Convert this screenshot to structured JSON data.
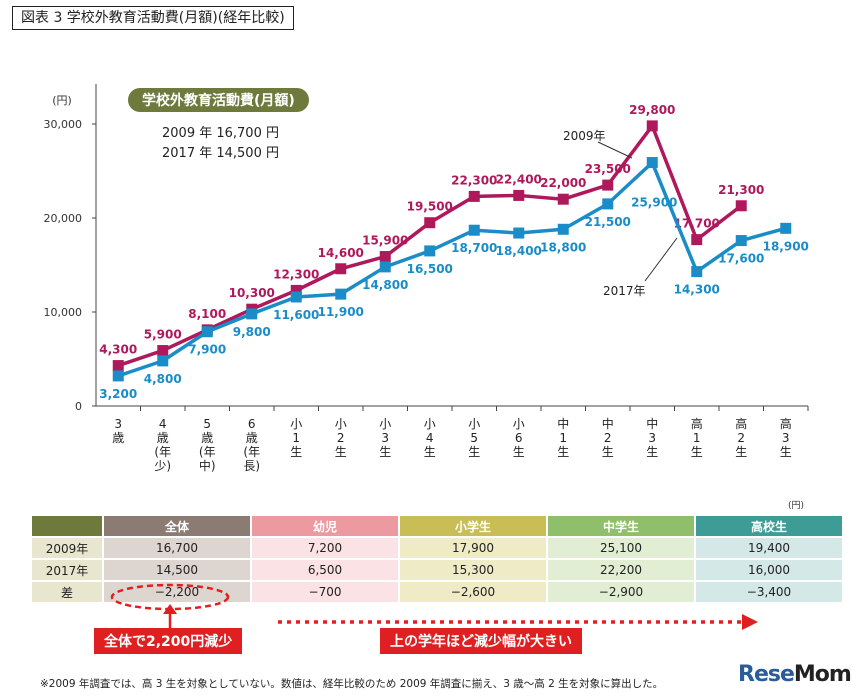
{
  "figure_title": "図表 3 学校外教育活動費(月額)(経年比較)",
  "summary": {
    "title": "学校外教育活動費(月額)",
    "line1": "2009 年 16,700 円",
    "line2": "2017 年 14,500 円"
  },
  "colors": {
    "y2009": "#b0185c",
    "y2017": "#1a8cc8",
    "highlight": "#e02020"
  },
  "chart_data": {
    "type": "line",
    "ylabel": "(円)",
    "ylim": [
      0,
      30000
    ],
    "yticks": [
      "0",
      "10,000",
      "20,000",
      "30,000"
    ],
    "categories": [
      "3歳",
      "4歳(年少)",
      "5歳(年中)",
      "6歳(年長)",
      "小1生",
      "小2生",
      "小3生",
      "小4生",
      "小5生",
      "小6生",
      "中1生",
      "中2生",
      "中3生",
      "高1生",
      "高2生",
      "高3生"
    ],
    "category_labels": [
      "3\n歳",
      "4\n歳\n(年\n少)",
      "5\n歳\n(年\n中)",
      "6\n歳\n(年\n長)",
      "小\n1\n生",
      "小\n2\n生",
      "小\n3\n生",
      "小\n4\n生",
      "小\n5\n生",
      "小\n6\n生",
      "中\n1\n生",
      "中\n2\n生",
      "中\n3\n生",
      "高\n1\n生",
      "高\n2\n生",
      "高\n3\n生"
    ],
    "series": [
      {
        "name": "2009年",
        "values": [
          4300,
          5900,
          8100,
          10300,
          12300,
          14600,
          15900,
          19500,
          22300,
          22400,
          22000,
          23500,
          29800,
          17700,
          21300,
          null
        ],
        "labels": [
          "4,300",
          "5,900",
          "8,100",
          "10,300",
          "12,300",
          "14,600",
          "15,900",
          "19,500",
          "22,300",
          "22,400",
          "22,000",
          "23,500",
          "29,800",
          "17,700",
          "21,300",
          ""
        ]
      },
      {
        "name": "2017年",
        "values": [
          3200,
          4800,
          7900,
          9800,
          11600,
          11900,
          14800,
          16500,
          18700,
          18400,
          18800,
          21500,
          25900,
          14300,
          17600,
          18900
        ],
        "labels": [
          "3,200",
          "4,800",
          "7,900",
          "9,800",
          "11,600",
          "11,900",
          "14,800",
          "16,500",
          "18,700",
          "18,400",
          "18,800",
          "21,500",
          "25,900",
          "14,300",
          "17,600",
          "18,900"
        ]
      }
    ]
  },
  "table": {
    "unit": "(円)",
    "headers": [
      "全体",
      "幼児",
      "小学生",
      "中学生",
      "高校生"
    ],
    "header_colors": [
      "#8c7b73",
      "#ec9aa0",
      "#c9be55",
      "#8fbf6a",
      "#3d9c96"
    ],
    "row_colors": [
      [
        "#ddd5cf",
        "#fbe2e4",
        "#efebc6",
        "#e1eed3",
        "#d4e9e7"
      ],
      [
        "#ddd5cf",
        "#fbe2e4",
        "#efebc6",
        "#e1eed3",
        "#d4e9e7"
      ],
      [
        "#ddd5cf",
        "#fbe2e4",
        "#efebc6",
        "#e1eed3",
        "#d4e9e7"
      ]
    ],
    "rows": [
      {
        "label": "2009年",
        "values": [
          "16,700",
          "7,200",
          "17,900",
          "25,100",
          "19,400"
        ]
      },
      {
        "label": "2017年",
        "values": [
          "14,500",
          "6,500",
          "15,300",
          "22,200",
          "16,000"
        ]
      },
      {
        "label": "差",
        "values": [
          "−2,200",
          "−700",
          "−2,600",
          "−2,900",
          "−3,400"
        ]
      }
    ]
  },
  "callouts": {
    "left": "全体で2,200円減少",
    "right": "上の学年ほど減少幅が大きい"
  },
  "footnote": "※2009 年調査では、高 3 生を対象としていない。数値は、経年比較のため 2009 年調査に揃え、3 歳〜高 2 生を対象に算出した。",
  "logo": {
    "part1": "Rese",
    "part2": "Mom"
  }
}
